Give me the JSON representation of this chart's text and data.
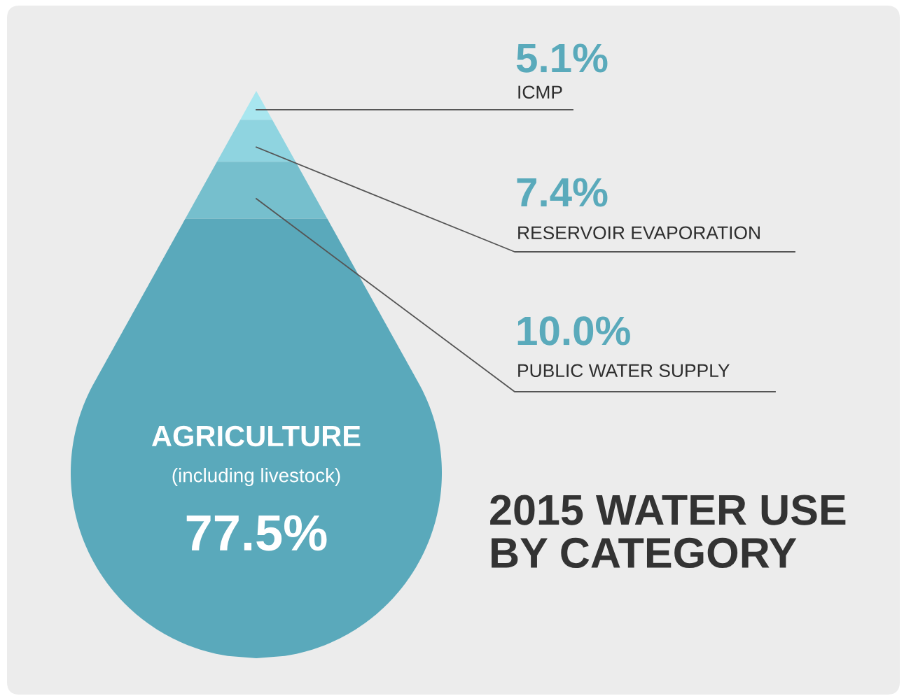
{
  "chart_data": {
    "type": "other",
    "title": "2015 WATER USE\nBY CATEGORY",
    "categories": [
      "ICMP",
      "RESERVOIR EVAPORATION",
      "PUBLIC WATER SUPPLY",
      "AGRICULTURE\n(including livestock)"
    ],
    "values": [
      5.1,
      7.4,
      10.0,
      77.5
    ],
    "value_labels": [
      "5.1%",
      "7.4%",
      "10.0%",
      "77.5%"
    ],
    "colors": [
      "#a8e6ef",
      "#8fd4e0",
      "#76bfcd",
      "#5aa9bb"
    ]
  }
}
